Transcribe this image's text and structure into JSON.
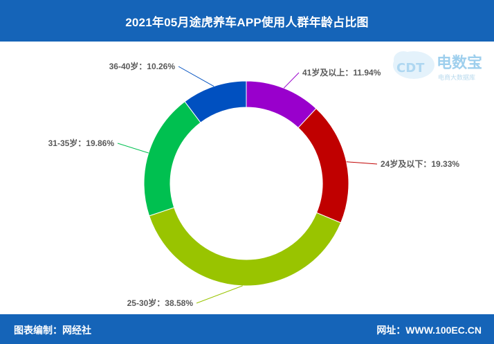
{
  "header": {
    "title": "2021年05月途虎养车APP使用人群年龄占比图"
  },
  "footer": {
    "left_label": "图表编制：网经社",
    "right_label": "网址：WWW.100EC.CN"
  },
  "watermark": {
    "logo_text": "CDT",
    "brand_name": "电数宝",
    "brand_sub": "电商大数据库"
  },
  "colors": {
    "header_bg": "#1564b8",
    "footer_bg": "#1564b8"
  },
  "chart_data": {
    "type": "pie",
    "style": "donut",
    "categories": [
      "41岁及以上",
      "24岁及以下",
      "25-30岁",
      "31-35岁",
      "36-40岁"
    ],
    "values": [
      11.94,
      19.33,
      38.58,
      19.86,
      10.26
    ],
    "labels": [
      "41岁及以上：11.94%",
      "24岁及以下：19.33%",
      "25-30岁：38.58%",
      "31-35岁：19.86%",
      "36-40岁：10.26%"
    ],
    "colors": [
      "#9900cc",
      "#c00000",
      "#99c400",
      "#00c050",
      "#0050c0"
    ]
  }
}
